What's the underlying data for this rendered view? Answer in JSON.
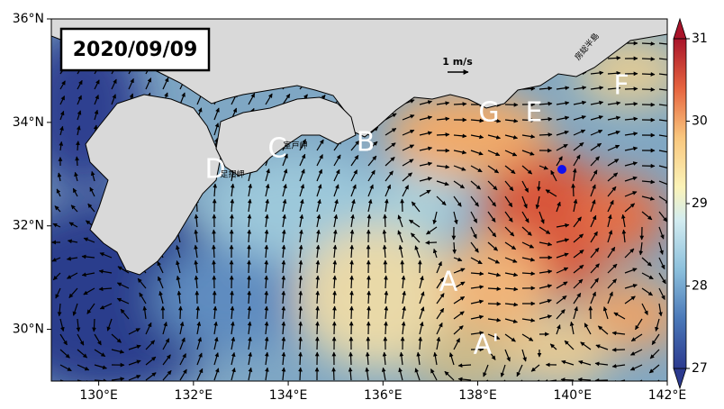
{
  "map": {
    "date_label": "2020/09/09",
    "xlim": [
      129,
      142
    ],
    "ylim": [
      29,
      36
    ],
    "xticks": [
      {
        "value": 130,
        "label": "130°E"
      },
      {
        "value": 132,
        "label": "132°E"
      },
      {
        "value": 134,
        "label": "134°E"
      },
      {
        "value": 136,
        "label": "136°E"
      },
      {
        "value": 138,
        "label": "138°E"
      },
      {
        "value": 140,
        "label": "140°E"
      },
      {
        "value": 142,
        "label": "142°E"
      }
    ],
    "yticks": [
      {
        "value": 30,
        "label": "30°N"
      },
      {
        "value": 32,
        "label": "32°N"
      },
      {
        "value": 34,
        "label": "34°N"
      },
      {
        "value": 36,
        "label": "36°N"
      }
    ],
    "colorbar": {
      "lim": [
        27,
        31
      ],
      "ticks": [
        27,
        28,
        29,
        30,
        31
      ]
    },
    "scale_label": "1 m/s",
    "annotations": [
      "A",
      "A'",
      "B",
      "C",
      "D",
      "E",
      "F",
      "G"
    ],
    "place_names": [
      "室戸岬",
      "足摺岬",
      "房総半島"
    ]
  }
}
